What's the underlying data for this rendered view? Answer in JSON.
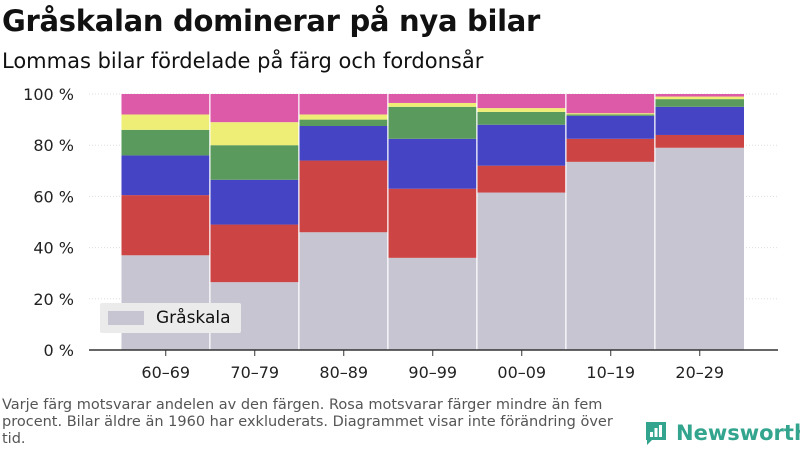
{
  "title": "Gråskalan dominerar på nya bilar",
  "subtitle": "Lommas bilar fördelade på färg och fordonsår",
  "footnote": "Varje färg motsvarar andelen av den färgen. Rosa motsvarar färger mindre än fem procent. Bilar äldre än 1960 har exkluderats. Diagrammet visar inte förändring över tid.",
  "brand": "Newsworthy",
  "legend": {
    "label": "Gråskala",
    "color": "#c6c5d1"
  },
  "chart_data": {
    "type": "bar",
    "stacked": true,
    "categories": [
      "60–69",
      "70–79",
      "80–89",
      "90–99",
      "00–09",
      "10–19",
      "20–29"
    ],
    "y_ticks": [
      "0 %",
      "20 %",
      "40 %",
      "60 %",
      "80 %",
      "100 %"
    ],
    "ylim": [
      0,
      100
    ],
    "series": [
      {
        "name": "Gråskala",
        "color": "#c6c5d1",
        "values": [
          37,
          26.5,
          46,
          36,
          61.5,
          73.5,
          79
        ]
      },
      {
        "color": "#cc4444",
        "values": [
          23.5,
          22.5,
          28,
          27,
          10.5,
          9,
          5
        ]
      },
      {
        "color": "#4444c4",
        "values": [
          15.5,
          17.5,
          13.5,
          19.5,
          16,
          9,
          11
        ]
      },
      {
        "color": "#5a9a5c",
        "values": [
          10,
          13.5,
          2.5,
          12.5,
          5,
          0.5,
          3
        ]
      },
      {
        "color": "#eeee77",
        "values": [
          6,
          9,
          2,
          1.5,
          1.5,
          0.5,
          1
        ]
      },
      {
        "color": "#dd5aa8",
        "values": [
          8,
          11,
          8,
          3.5,
          5.5,
          7.5,
          1
        ]
      }
    ]
  }
}
